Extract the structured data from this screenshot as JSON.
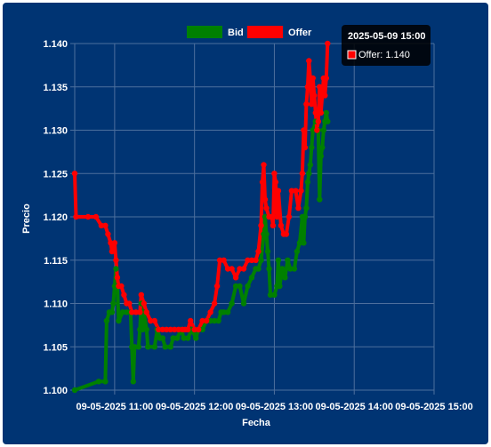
{
  "chart_data": {
    "type": "line",
    "title": "",
    "xlabel": "Fecha",
    "ylabel": "Precio",
    "ylim": [
      1.1,
      1.14
    ],
    "xlim": [
      "2025-05-09 10:30",
      "2025-05-09 15:00"
    ],
    "y_ticks": [
      "1.100",
      "1.105",
      "1.110",
      "1.115",
      "1.120",
      "1.125",
      "1.130",
      "1.135",
      "1.140"
    ],
    "x_ticks": [
      {
        "time": "2025-05-09 11:00",
        "label": "09-05-2025 11:00"
      },
      {
        "time": "2025-05-09 12:00",
        "label": "09-05-2025 12:00"
      },
      {
        "time": "2025-05-09 13:00",
        "label": "09-05-2025 13:00"
      },
      {
        "time": "2025-05-09 14:00",
        "label": "09-05-2025 14:00"
      },
      {
        "time": "2025-05-09 15:00",
        "label": "09-05-2025 15:00"
      }
    ],
    "grid": true,
    "legend_position": "top-center",
    "series": [
      {
        "name": "Bid",
        "color": "#008000",
        "points": [
          [
            "2025-05-09 10:30",
            1.1
          ],
          [
            "2025-05-09 10:48",
            1.101
          ],
          [
            "2025-05-09 10:53",
            1.101
          ],
          [
            "2025-05-09 10:54",
            1.108
          ],
          [
            "2025-05-09 10:56",
            1.109
          ],
          [
            "2025-05-09 10:58",
            1.109
          ],
          [
            "2025-05-09 10:59",
            1.11
          ],
          [
            "2025-05-09 11:00",
            1.112
          ],
          [
            "2025-05-09 11:01",
            1.114
          ],
          [
            "2025-05-09 11:02",
            1.112
          ],
          [
            "2025-05-09 11:03",
            1.108
          ],
          [
            "2025-05-09 11:06",
            1.109
          ],
          [
            "2025-05-09 11:09",
            1.109
          ],
          [
            "2025-05-09 11:12",
            1.109
          ],
          [
            "2025-05-09 11:13",
            1.105
          ],
          [
            "2025-05-09 11:14",
            1.101
          ],
          [
            "2025-05-09 11:15",
            1.105
          ],
          [
            "2025-05-09 11:18",
            1.105
          ],
          [
            "2025-05-09 11:19",
            1.107
          ],
          [
            "2025-05-09 11:20",
            1.11
          ],
          [
            "2025-05-09 11:21",
            1.107
          ],
          [
            "2025-05-09 11:22",
            1.109
          ],
          [
            "2025-05-09 11:24",
            1.107
          ],
          [
            "2025-05-09 11:25",
            1.105
          ],
          [
            "2025-05-09 11:30",
            1.105
          ],
          [
            "2025-05-09 11:32",
            1.107
          ],
          [
            "2025-05-09 11:34",
            1.106
          ],
          [
            "2025-05-09 11:36",
            1.106
          ],
          [
            "2025-05-09 11:38",
            1.105
          ],
          [
            "2025-05-09 11:42",
            1.105
          ],
          [
            "2025-05-09 11:44",
            1.106
          ],
          [
            "2025-05-09 11:47",
            1.106
          ],
          [
            "2025-05-09 11:50",
            1.107
          ],
          [
            "2025-05-09 11:52",
            1.106
          ],
          [
            "2025-05-09 11:55",
            1.106
          ],
          [
            "2025-05-09 11:58",
            1.107
          ],
          [
            "2025-05-09 12:01",
            1.106
          ],
          [
            "2025-05-09 12:03",
            1.107
          ],
          [
            "2025-05-09 12:06",
            1.107
          ],
          [
            "2025-05-09 12:09",
            1.108
          ],
          [
            "2025-05-09 12:12",
            1.108
          ],
          [
            "2025-05-09 12:15",
            1.108
          ],
          [
            "2025-05-09 12:18",
            1.108
          ],
          [
            "2025-05-09 12:20",
            1.109
          ],
          [
            "2025-05-09 12:22",
            1.109
          ],
          [
            "2025-05-09 12:25",
            1.109
          ],
          [
            "2025-05-09 12:28",
            1.11
          ],
          [
            "2025-05-09 12:31",
            1.112
          ],
          [
            "2025-05-09 12:34",
            1.112
          ],
          [
            "2025-05-09 12:37",
            1.11
          ],
          [
            "2025-05-09 12:40",
            1.112
          ],
          [
            "2025-05-09 12:43",
            1.113
          ],
          [
            "2025-05-09 12:46",
            1.114
          ],
          [
            "2025-05-09 12:48",
            1.114
          ],
          [
            "2025-05-09 12:50",
            1.115
          ],
          [
            "2025-05-09 12:52",
            1.118
          ],
          [
            "2025-05-09 12:53",
            1.12
          ],
          [
            "2025-05-09 12:54",
            1.118
          ],
          [
            "2025-05-09 12:55",
            1.116
          ],
          [
            "2025-05-09 12:56",
            1.114
          ],
          [
            "2025-05-09 12:57",
            1.111
          ],
          [
            "2025-05-09 13:00",
            1.111
          ],
          [
            "2025-05-09 13:02",
            1.112
          ],
          [
            "2025-05-09 13:03",
            1.115
          ],
          [
            "2025-05-09 13:04",
            1.112
          ],
          [
            "2025-05-09 13:06",
            1.114
          ],
          [
            "2025-05-09 13:08",
            1.113
          ],
          [
            "2025-05-09 13:10",
            1.115
          ],
          [
            "2025-05-09 13:12",
            1.114
          ],
          [
            "2025-05-09 13:15",
            1.114
          ],
          [
            "2025-05-09 13:17",
            1.116
          ],
          [
            "2025-05-09 13:19",
            1.117
          ],
          [
            "2025-05-09 13:21",
            1.12
          ],
          [
            "2025-05-09 13:22",
            1.117
          ],
          [
            "2025-05-09 13:23",
            1.12
          ],
          [
            "2025-05-09 13:24",
            1.121
          ],
          [
            "2025-05-09 13:25",
            1.124
          ],
          [
            "2025-05-09 13:26",
            1.125
          ],
          [
            "2025-05-09 13:27",
            1.126
          ],
          [
            "2025-05-09 13:28",
            1.128
          ],
          [
            "2025-05-09 13:29",
            1.13
          ],
          [
            "2025-05-09 13:31",
            1.131
          ],
          [
            "2025-05-09 13:33",
            1.13
          ],
          [
            "2025-05-09 13:34",
            1.122
          ],
          [
            "2025-05-09 13:35",
            1.127
          ],
          [
            "2025-05-09 13:36",
            1.128
          ],
          [
            "2025-05-09 13:37",
            1.13
          ],
          [
            "2025-05-09 13:38",
            1.131
          ],
          [
            "2025-05-09 13:39",
            1.132
          ],
          [
            "2025-05-09 13:40",
            1.131
          ]
        ]
      },
      {
        "name": "Offer",
        "color": "#ff0000",
        "points": [
          [
            "2025-05-09 10:30",
            1.125
          ],
          [
            "2025-05-09 10:31",
            1.12
          ],
          [
            "2025-05-09 10:40",
            1.12
          ],
          [
            "2025-05-09 10:46",
            1.12
          ],
          [
            "2025-05-09 10:50",
            1.119
          ],
          [
            "2025-05-09 10:53",
            1.119
          ],
          [
            "2025-05-09 10:55",
            1.118
          ],
          [
            "2025-05-09 10:57",
            1.117
          ],
          [
            "2025-05-09 10:58",
            1.116
          ],
          [
            "2025-05-09 11:00",
            1.117
          ],
          [
            "2025-05-09 11:01",
            1.115
          ],
          [
            "2025-05-09 11:02",
            1.113
          ],
          [
            "2025-05-09 11:03",
            1.112
          ],
          [
            "2025-05-09 11:05",
            1.112
          ],
          [
            "2025-05-09 11:07",
            1.111
          ],
          [
            "2025-05-09 11:09",
            1.11
          ],
          [
            "2025-05-09 11:11",
            1.11
          ],
          [
            "2025-05-09 11:13",
            1.109
          ],
          [
            "2025-05-09 11:16",
            1.109
          ],
          [
            "2025-05-09 11:19",
            1.109
          ],
          [
            "2025-05-09 11:20",
            1.111
          ],
          [
            "2025-05-09 11:22",
            1.11
          ],
          [
            "2025-05-09 11:24",
            1.109
          ],
          [
            "2025-05-09 11:27",
            1.108
          ],
          [
            "2025-05-09 11:30",
            1.108
          ],
          [
            "2025-05-09 11:33",
            1.107
          ],
          [
            "2025-05-09 11:36",
            1.107
          ],
          [
            "2025-05-09 11:39",
            1.107
          ],
          [
            "2025-05-09 11:42",
            1.107
          ],
          [
            "2025-05-09 11:45",
            1.107
          ],
          [
            "2025-05-09 11:48",
            1.107
          ],
          [
            "2025-05-09 11:51",
            1.107
          ],
          [
            "2025-05-09 11:53",
            1.107
          ],
          [
            "2025-05-09 11:55",
            1.107
          ],
          [
            "2025-05-09 11:57",
            1.108
          ],
          [
            "2025-05-09 12:00",
            1.107
          ],
          [
            "2025-05-09 12:03",
            1.107
          ],
          [
            "2025-05-09 12:06",
            1.108
          ],
          [
            "2025-05-09 12:09",
            1.108
          ],
          [
            "2025-05-09 12:12",
            1.109
          ],
          [
            "2025-05-09 12:15",
            1.11
          ],
          [
            "2025-05-09 12:17",
            1.112
          ],
          [
            "2025-05-09 12:19",
            1.115
          ],
          [
            "2025-05-09 12:22",
            1.115
          ],
          [
            "2025-05-09 12:25",
            1.114
          ],
          [
            "2025-05-09 12:28",
            1.114
          ],
          [
            "2025-05-09 12:31",
            1.113
          ],
          [
            "2025-05-09 12:34",
            1.114
          ],
          [
            "2025-05-09 12:37",
            1.114
          ],
          [
            "2025-05-09 12:40",
            1.115
          ],
          [
            "2025-05-09 12:43",
            1.115
          ],
          [
            "2025-05-09 12:46",
            1.115
          ],
          [
            "2025-05-09 12:48",
            1.116
          ],
          [
            "2025-05-09 12:50",
            1.119
          ],
          [
            "2025-05-09 12:51",
            1.124
          ],
          [
            "2025-05-09 12:52",
            1.126
          ],
          [
            "2025-05-09 12:53",
            1.122
          ],
          [
            "2025-05-09 12:54",
            1.121
          ],
          [
            "2025-05-09 12:56",
            1.12
          ],
          [
            "2025-05-09 12:58",
            1.12
          ],
          [
            "2025-05-09 12:59",
            1.119
          ],
          [
            "2025-05-09 13:00",
            1.125
          ],
          [
            "2025-05-09 13:01",
            1.124
          ],
          [
            "2025-05-09 13:02",
            1.12
          ],
          [
            "2025-05-09 13:03",
            1.123
          ],
          [
            "2025-05-09 13:05",
            1.119
          ],
          [
            "2025-05-09 13:07",
            1.118
          ],
          [
            "2025-05-09 13:09",
            1.118
          ],
          [
            "2025-05-09 13:11",
            1.12
          ],
          [
            "2025-05-09 13:13",
            1.123
          ],
          [
            "2025-05-09 13:16",
            1.123
          ],
          [
            "2025-05-09 13:18",
            1.121
          ],
          [
            "2025-05-09 13:20",
            1.123
          ],
          [
            "2025-05-09 13:21",
            1.125
          ],
          [
            "2025-05-09 13:22",
            1.13
          ],
          [
            "2025-05-09 13:23",
            1.128
          ],
          [
            "2025-05-09 13:24",
            1.133
          ],
          [
            "2025-05-09 13:25",
            1.135
          ],
          [
            "2025-05-09 13:26",
            1.138
          ],
          [
            "2025-05-09 13:27",
            1.136
          ],
          [
            "2025-05-09 13:28",
            1.133
          ],
          [
            "2025-05-09 13:29",
            1.136
          ],
          [
            "2025-05-09 13:30",
            1.134
          ],
          [
            "2025-05-09 13:31",
            1.132
          ],
          [
            "2025-05-09 13:32",
            1.13
          ],
          [
            "2025-05-09 13:33",
            1.131
          ],
          [
            "2025-05-09 13:34",
            1.135
          ],
          [
            "2025-05-09 13:35",
            1.132
          ],
          [
            "2025-05-09 13:36",
            1.134
          ],
          [
            "2025-05-09 13:37",
            1.136
          ],
          [
            "2025-05-09 13:38",
            1.134
          ],
          [
            "2025-05-09 13:39",
            1.136
          ],
          [
            "2025-05-09 13:40",
            1.14
          ]
        ]
      }
    ]
  },
  "tooltip": {
    "title": "2025-05-09 15:00",
    "series": "Offer",
    "value": "1.140",
    "text": "Offer: 1.140",
    "color": "#ff0000"
  },
  "colors": {
    "background": "#003473",
    "grid": "#4d6f9d",
    "text": "#ffffff"
  }
}
